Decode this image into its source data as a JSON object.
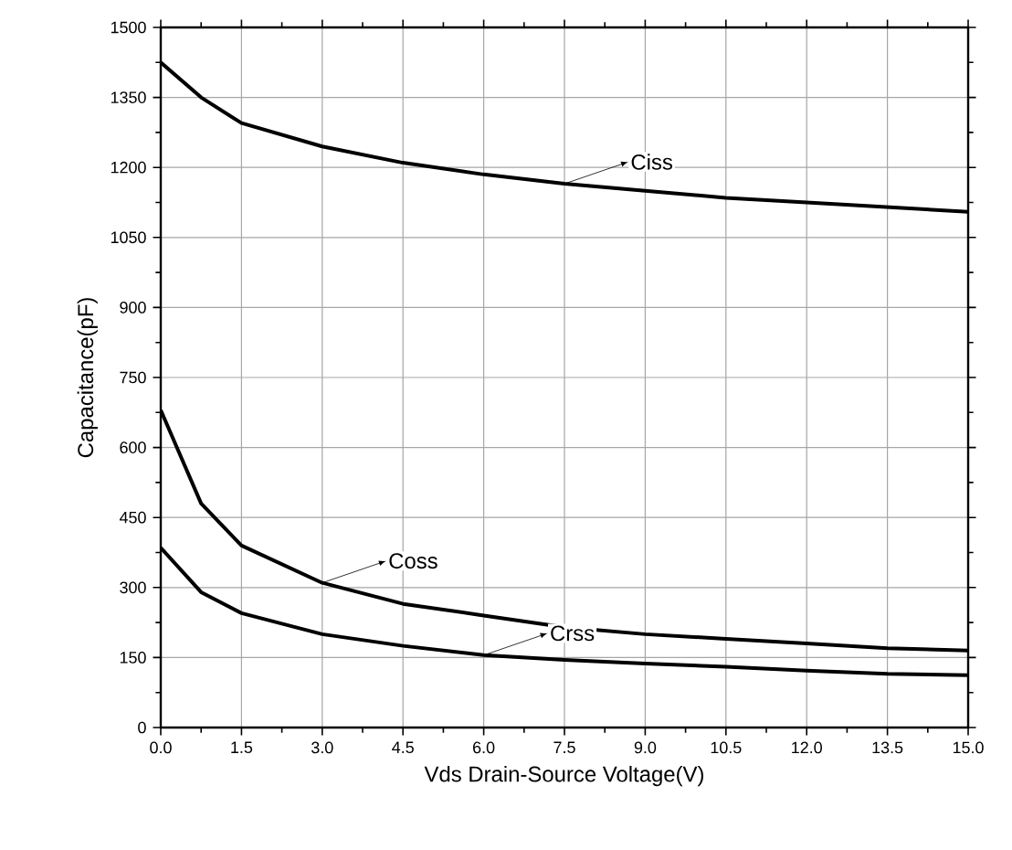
{
  "chart_data": {
    "type": "line",
    "xlabel": "Vds Drain-Source Voltage(V)",
    "ylabel": "Capacitance(pF)",
    "x": [
      0,
      0.75,
      1.5,
      3.0,
      4.5,
      6.0,
      7.5,
      9.0,
      10.5,
      12.0,
      13.5,
      15.0
    ],
    "series": [
      {
        "name": "Ciss",
        "color": "#000000",
        "values": [
          1425,
          1350,
          1295,
          1245,
          1210,
          1185,
          1165,
          1150,
          1135,
          1125,
          1115,
          1105
        ]
      },
      {
        "name": "Coss",
        "color": "#000000",
        "values": [
          680,
          480,
          390,
          310,
          265,
          240,
          215,
          200,
          190,
          180,
          170,
          165
        ]
      },
      {
        "name": "Crss",
        "color": "#000000",
        "values": [
          385,
          290,
          245,
          200,
          175,
          155,
          145,
          137,
          130,
          122,
          115,
          112
        ]
      }
    ],
    "xlim": [
      0,
      15
    ],
    "ylim": [
      0,
      1500
    ],
    "xticks": [
      {
        "value": 0,
        "label": "0.0"
      },
      {
        "value": 1.5,
        "label": "1.5"
      },
      {
        "value": 3,
        "label": "3.0"
      },
      {
        "value": 4.5,
        "label": "4.5"
      },
      {
        "value": 6,
        "label": "6.0"
      },
      {
        "value": 7.5,
        "label": "7.5"
      },
      {
        "value": 9,
        "label": "9.0"
      },
      {
        "value": 10.5,
        "label": "10.5"
      },
      {
        "value": 12,
        "label": "12.0"
      },
      {
        "value": 13.5,
        "label": "13.5"
      },
      {
        "value": 15,
        "label": "15.0"
      }
    ],
    "yticks": [
      0,
      150,
      300,
      450,
      600,
      750,
      900,
      1050,
      1200,
      1350,
      1500
    ],
    "grid": true,
    "marker": "none",
    "line_style": "solid",
    "legend": "center"
  }
}
